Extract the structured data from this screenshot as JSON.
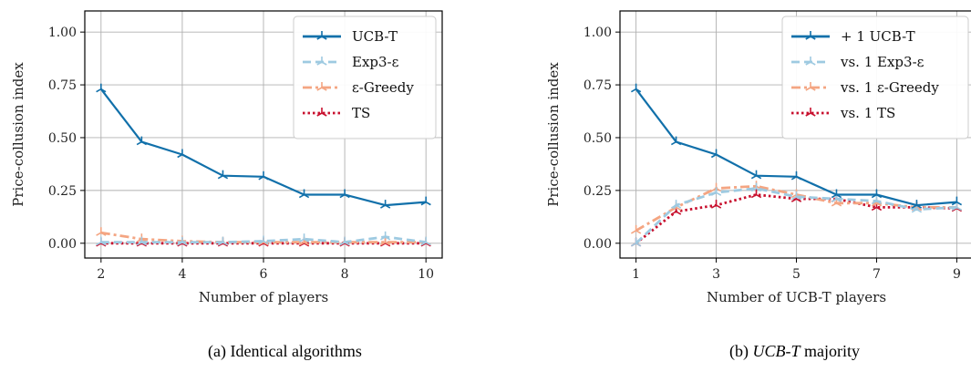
{
  "captions": [
    {
      "prefix": "(a) Identical algorithms",
      "italic": ""
    },
    {
      "prefix": "(b) ",
      "italic": "UCB-T",
      "suffix": " majority"
    }
  ],
  "chart_data": [
    {
      "type": "line",
      "xlabel": "Number of players",
      "ylabel": "Price-collusion index",
      "x": [
        2,
        3,
        4,
        5,
        6,
        7,
        8,
        9,
        10
      ],
      "xticks": [
        "2",
        "4",
        "6",
        "8",
        "10"
      ],
      "yticks": [
        "0.00",
        "0.25",
        "0.50",
        "0.75",
        "1.00"
      ],
      "xlim": [
        1.6,
        10.4
      ],
      "ylim": [
        -0.07,
        1.1
      ],
      "grid": true,
      "legend_position": "top-right",
      "series": [
        {
          "name": "UCB-T",
          "values": [
            0.73,
            0.48,
            0.42,
            0.32,
            0.315,
            0.23,
            0.23,
            0.18,
            0.195
          ],
          "color": "#1170aa",
          "style": "solid"
        },
        {
          "name": "Exp3-ε",
          "values": [
            0.005,
            0.005,
            0.005,
            0.005,
            0.01,
            0.02,
            0.005,
            0.03,
            0.005
          ],
          "color": "#9ecae1",
          "style": "dashed"
        },
        {
          "name": "ε-Greedy",
          "values": [
            0.05,
            0.02,
            0.01,
            0.005,
            0.005,
            0.005,
            0.005,
            0.005,
            0.005
          ],
          "color": "#f4a582",
          "style": "dashdot"
        },
        {
          "name": "TS",
          "values": [
            0.0,
            0.0,
            0.0,
            0.0,
            0.0,
            0.0,
            0.0,
            0.0,
            0.0
          ],
          "color": "#c8102e",
          "style": "dotted"
        }
      ]
    },
    {
      "type": "line",
      "xlabel": "Number of UCB-T players",
      "ylabel": "Price-collusion index",
      "x": [
        1,
        2,
        3,
        4,
        5,
        6,
        7,
        8,
        9
      ],
      "xticks": [
        "1",
        "3",
        "5",
        "7",
        "9"
      ],
      "yticks": [
        "0.00",
        "0.25",
        "0.50",
        "0.75",
        "1.00"
      ],
      "xlim": [
        0.6,
        9.4
      ],
      "ylim": [
        -0.07,
        1.1
      ],
      "grid": true,
      "legend_position": "top-right",
      "series": [
        {
          "name": "+ 1 UCB-T",
          "values": [
            0.73,
            0.48,
            0.42,
            0.32,
            0.315,
            0.23,
            0.23,
            0.18,
            0.195
          ],
          "color": "#1170aa",
          "style": "solid"
        },
        {
          "name": "vs. 1 Exp3-ε",
          "values": [
            0.0,
            0.18,
            0.24,
            0.26,
            0.22,
            0.21,
            0.2,
            0.16,
            0.17
          ],
          "color": "#9ecae1",
          "style": "dashed"
        },
        {
          "name": "vs. 1 ε-Greedy",
          "values": [
            0.06,
            0.17,
            0.26,
            0.27,
            0.23,
            0.19,
            0.19,
            0.17,
            0.17
          ],
          "color": "#f4a582",
          "style": "dashdot"
        },
        {
          "name": "vs. 1 TS",
          "values": [
            0.0,
            0.15,
            0.18,
            0.23,
            0.21,
            0.21,
            0.17,
            0.17,
            0.165
          ],
          "color": "#c8102e",
          "style": "dotted"
        }
      ]
    }
  ]
}
